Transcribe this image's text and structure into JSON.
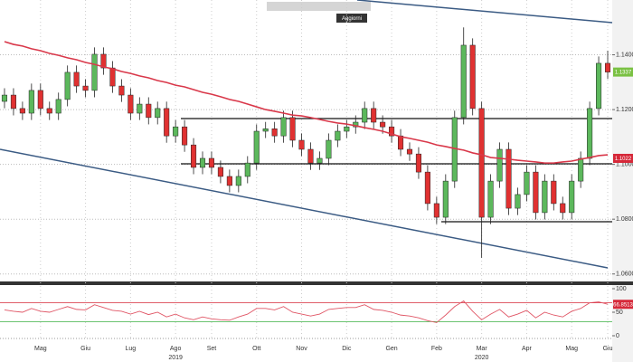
{
  "toolbar": {
    "button": "Aggiorni"
  },
  "chart_data": [
    {
      "type": "candlestick",
      "categories": [
        null,
        null,
        null,
        null,
        "Mag",
        null,
        null,
        null,
        null,
        "Giu",
        null,
        null,
        null,
        null,
        "Lug",
        null,
        null,
        null,
        null,
        "Ago",
        null,
        null,
        null,
        "Set",
        null,
        null,
        null,
        null,
        "Ott",
        null,
        null,
        null,
        null,
        "Nov",
        null,
        null,
        null,
        null,
        "Dic",
        null,
        null,
        null,
        null,
        "Gen",
        null,
        null,
        null,
        null,
        "Feb",
        null,
        null,
        null,
        null,
        "Mar",
        null,
        null,
        null,
        null,
        "Apr",
        null,
        null,
        null,
        null,
        "Mag",
        null,
        null,
        null,
        "Giu"
      ],
      "years": [
        null,
        null,
        null,
        null,
        null,
        null,
        null,
        null,
        null,
        null,
        null,
        null,
        null,
        null,
        null,
        null,
        null,
        null,
        null,
        "2019",
        null,
        null,
        null,
        null,
        null,
        null,
        null,
        null,
        null,
        null,
        null,
        null,
        null,
        null,
        null,
        null,
        null,
        null,
        null,
        null,
        null,
        null,
        null,
        null,
        null,
        null,
        null,
        null,
        null,
        null,
        null,
        null,
        null,
        "2020",
        null,
        null,
        null,
        null,
        null,
        null,
        null,
        null,
        null,
        null,
        null,
        null,
        null,
        null
      ],
      "open": [
        1.123,
        1.1253,
        1.1204,
        1.1187,
        1.127,
        1.1204,
        1.1187,
        1.1237,
        1.1336,
        1.1286,
        1.127,
        1.1402,
        1.1352,
        1.1286,
        1.1253,
        1.1187,
        1.122,
        1.1171,
        1.1204,
        1.1104,
        1.1137,
        1.1071,
        1.0989,
        1.1022,
        1.0989,
        1.0956,
        1.0923,
        1.0956,
        1.1005,
        1.1121,
        1.113,
        1.1104,
        1.1171,
        1.1088,
        1.1055,
        1.1005,
        1.1022,
        1.1088,
        1.1121,
        1.1137,
        1.1154,
        1.1204,
        1.1154,
        1.1137,
        1.1104,
        1.1055,
        1.1038,
        1.0972,
        1.0857,
        1.0807,
        1.0939,
        1.1171,
        1.1435,
        1.1204,
        1.0807,
        1.0939,
        1.1055,
        1.084,
        1.089,
        1.0972,
        1.0824,
        1.0939,
        1.0857,
        1.0824,
        1.0939,
        1.1022,
        1.1204,
        1.1369
      ],
      "high": [
        1.1278,
        1.1278,
        1.1229,
        1.1295,
        1.1295,
        1.1229,
        1.1262,
        1.1361,
        1.1361,
        1.1311,
        1.1427,
        1.1427,
        1.1377,
        1.1311,
        1.1278,
        1.1245,
        1.1245,
        1.1229,
        1.1229,
        1.1162,
        1.1162,
        1.1096,
        1.1047,
        1.1047,
        1.1014,
        1.0981,
        1.0981,
        1.103,
        1.1146,
        1.1155,
        1.1155,
        1.1196,
        1.1196,
        1.1113,
        1.108,
        1.1047,
        1.1113,
        1.1146,
        1.1162,
        1.1179,
        1.1229,
        1.1229,
        1.1179,
        1.1162,
        1.1129,
        1.108,
        1.1063,
        1.0997,
        1.0882,
        1.0964,
        1.1196,
        1.15,
        1.146,
        1.1229,
        1.0964,
        1.108,
        1.108,
        1.0915,
        1.0997,
        1.0997,
        1.0964,
        1.0964,
        1.0882,
        1.0964,
        1.1047,
        1.1229,
        1.1394,
        1.1415
      ],
      "low": [
        1.1205,
        1.1179,
        1.1162,
        1.1162,
        1.1179,
        1.1162,
        1.1162,
        1.1212,
        1.1261,
        1.1245,
        1.1245,
        1.1327,
        1.1261,
        1.1228,
        1.1162,
        1.1162,
        1.1146,
        1.1146,
        1.1079,
        1.1079,
        1.1046,
        1.0964,
        1.0964,
        1.0964,
        1.0931,
        1.0898,
        1.0898,
        1.0931,
        1.098,
        1.1096,
        1.1079,
        1.1079,
        1.1063,
        1.103,
        1.098,
        1.098,
        1.0997,
        1.1063,
        1.1096,
        1.1112,
        1.1129,
        1.1129,
        1.1112,
        1.1079,
        1.103,
        1.1013,
        1.0947,
        1.0832,
        1.0782,
        1.0782,
        1.0914,
        1.1146,
        1.1179,
        1.0659,
        1.0782,
        1.0914,
        1.0815,
        1.0815,
        1.0865,
        1.0799,
        1.0799,
        1.0832,
        1.0799,
        1.0799,
        1.0914,
        1.0997,
        1.1179,
        1.1312
      ],
      "close": [
        1.1253,
        1.1204,
        1.1187,
        1.127,
        1.1204,
        1.1187,
        1.1237,
        1.1336,
        1.1286,
        1.127,
        1.1402,
        1.1352,
        1.1286,
        1.1253,
        1.1187,
        1.122,
        1.1171,
        1.1204,
        1.1104,
        1.1137,
        1.1071,
        1.0989,
        1.1022,
        1.0989,
        1.0956,
        1.0923,
        1.0956,
        1.1005,
        1.1121,
        1.113,
        1.1104,
        1.1171,
        1.1088,
        1.1055,
        1.1005,
        1.1022,
        1.1088,
        1.1121,
        1.1137,
        1.1154,
        1.1204,
        1.1154,
        1.1137,
        1.1104,
        1.1055,
        1.1038,
        1.0972,
        1.0857,
        1.0807,
        1.0939,
        1.1171,
        1.1435,
        1.1204,
        1.0807,
        1.0939,
        1.1055,
        1.084,
        1.089,
        1.0972,
        1.0824,
        1.0939,
        1.0857,
        1.0824,
        1.0939,
        1.1022,
        1.1204,
        1.1369,
        1.1337
      ],
      "up_color": "#5cb85c",
      "down_color": "#e03131",
      "ylim": [
        1.0576,
        1.16
      ],
      "yticks": [
        {
          "value": 1.06,
          "label": "1.0600"
        },
        {
          "value": 1.08,
          "label": "1.0800"
        },
        {
          "value": 1.1,
          "label": "1.1000"
        },
        {
          "value": 1.12,
          "label": "1.1200"
        },
        {
          "value": 1.14,
          "label": "1.1400"
        }
      ],
      "grid": true,
      "lines": [
        {
          "color": "#d9384a",
          "values": [
            1.1448,
            1.1438,
            1.1432,
            1.1422,
            1.1415,
            1.1405,
            1.1398,
            1.1389,
            1.1382,
            1.1372,
            1.1365,
            1.1356,
            1.1349,
            1.1339,
            1.1332,
            1.1323,
            1.1316,
            1.1306,
            1.1299,
            1.1289,
            1.1283,
            1.1273,
            1.1263,
            1.1256,
            1.1247,
            1.1237,
            1.123,
            1.122,
            1.121,
            1.12,
            1.1194,
            1.1187,
            1.118,
            1.1177,
            1.1171,
            1.1164,
            1.1157,
            1.1151,
            1.1147,
            1.1141,
            1.1134,
            1.1128,
            1.1121,
            1.1111,
            1.1101,
            1.1095,
            1.1088,
            1.1081,
            1.1071,
            1.1065,
            1.1058,
            1.1052,
            1.1042,
            1.1035,
            1.1025,
            1.1022,
            1.1019,
            1.1015,
            1.1012,
            1.1009,
            1.1005,
            1.1005,
            1.1009,
            1.1012,
            1.1019,
            1.1025,
            1.1032,
            1.1035
          ]
        }
      ],
      "tags": [
        {
          "value": 1.1337,
          "label": "1.1337",
          "color": "#7ac143"
        },
        {
          "value": 1.1022,
          "label": "1.1022",
          "color": "#d62839"
        }
      ]
    },
    {
      "type": "line",
      "values": [
        55,
        52,
        50,
        58,
        52,
        50,
        56,
        62,
        56,
        55,
        66,
        60,
        54,
        52,
        46,
        52,
        45,
        50,
        40,
        46,
        38,
        34,
        40,
        36,
        34,
        33,
        40,
        46,
        58,
        58,
        55,
        62,
        50,
        46,
        42,
        46,
        56,
        58,
        60,
        60,
        66,
        56,
        54,
        50,
        44,
        42,
        38,
        32,
        28,
        44,
        62,
        74,
        52,
        34,
        46,
        56,
        40,
        46,
        54,
        38,
        50,
        44,
        40,
        52,
        58,
        70,
        72,
        66.8513
      ],
      "color": "#e05565",
      "ylim": [
        0,
        100
      ],
      "yticks": [
        0,
        50,
        100
      ],
      "bands": [
        {
          "value": 70,
          "color": "#d62839"
        },
        {
          "value": 30,
          "color": "#3cb043"
        }
      ],
      "tags": [
        {
          "value": 66.8513,
          "label": "66.8513",
          "color": "#d62839"
        }
      ]
    }
  ]
}
